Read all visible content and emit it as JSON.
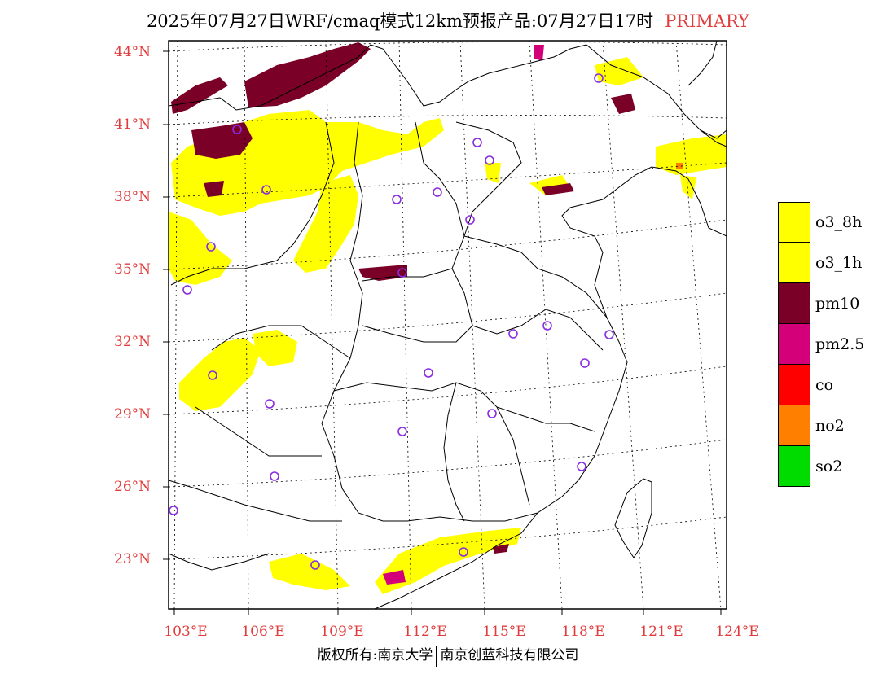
{
  "title": {
    "main": "2025年07月27日WRF/cmaq模式12km预报产品:07月27日17时",
    "highlight": "PRIMARY"
  },
  "axes": {
    "lat_labels": [
      "44°N",
      "41°N",
      "38°N",
      "35°N",
      "32°N",
      "29°N",
      "26°N",
      "23°N"
    ],
    "lon_labels": [
      "103°E",
      "106°E",
      "109°E",
      "112°E",
      "115°E",
      "118°E",
      "121°E",
      "124°E"
    ]
  },
  "legend": [
    {
      "label": "o3_8h",
      "color": "#ffff00"
    },
    {
      "label": "o3_1h",
      "color": "#ffff00"
    },
    {
      "label": "pm10",
      "color": "#7b0028"
    },
    {
      "label": "pm2.5",
      "color": "#d4007a"
    },
    {
      "label": "co",
      "color": "#ff0000"
    },
    {
      "label": "no2",
      "color": "#ff8000"
    },
    {
      "label": "so2",
      "color": "#00dc00"
    }
  ],
  "footer": {
    "left": "版权所有:南京大学",
    "right": "南京创蓝科技有限公司"
  },
  "colors": {
    "label_red": "#e03c3c",
    "station_circle": "#8a2be2"
  }
}
